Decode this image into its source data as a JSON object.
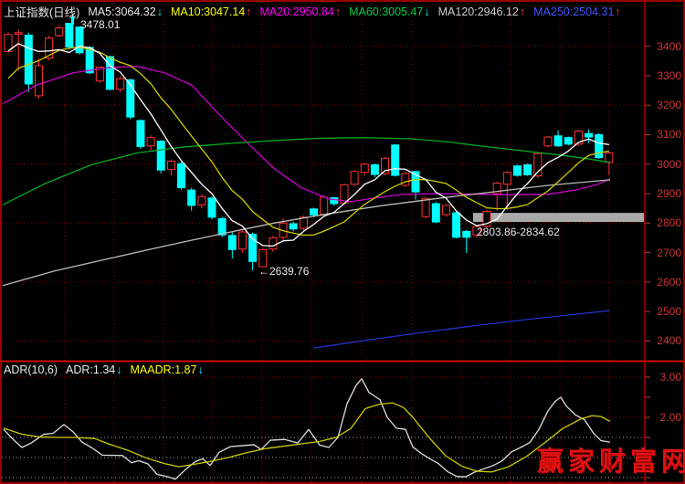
{
  "header": {
    "title": "上证指数(日线)",
    "ma_legend": [
      {
        "label": "MA5:3064.32",
        "arrow": "↓",
        "color": "#e8e8e8",
        "arrow_color": "#00ffff"
      },
      {
        "label": "MA10:3047.14",
        "arrow": "↑",
        "color": "#ffff00",
        "arrow_color": "#ff3333"
      },
      {
        "label": "MA20:2950.84",
        "arrow": "↑",
        "color": "#ff00ff",
        "arrow_color": "#ff3333"
      },
      {
        "label": "MA60:3005.47",
        "arrow": "↓",
        "color": "#00cc44",
        "arrow_color": "#00ffff"
      },
      {
        "label": "MA120:2946.12",
        "arrow": "↑",
        "color": "#cccccc",
        "arrow_color": "#ff3333"
      },
      {
        "label": "MA250:2504.31",
        "arrow": "↑",
        "color": "#4455ff",
        "arrow_color": "#ff3333"
      }
    ]
  },
  "adr_header": {
    "title": "ADR(10,6)",
    "items": [
      {
        "label": "ADR:1.34",
        "arrow": "↓",
        "color": "#e8e8e8",
        "arrow_color": "#00ffff"
      },
      {
        "label": "MAADR:1.87",
        "arrow": "↓",
        "color": "#ffff00",
        "arrow_color": "#00ffff"
      }
    ]
  },
  "watermark": "赢家财富网",
  "colors": {
    "bg": "#000000",
    "border": "#9a0000",
    "grid": "#8b0000",
    "grid_gray": "#aaaaaa",
    "axis_line": "#b00000",
    "separator": "#cc0000",
    "axis_text": "#cd3434",
    "up": "#ff3232",
    "down": "#00ffff",
    "band": "#aaaaaa",
    "ma5": "#ffffff",
    "ma10": "#cccc00",
    "ma20": "#cc00cc",
    "ma60": "#00aa22",
    "ma120": "#bbbbbb",
    "ma250": "#2233cc",
    "adr_line": "#dddddd",
    "maadr_line": "#cccc00"
  },
  "chart_data": [
    {
      "type": "candlestick",
      "title": "上证指数(日线)",
      "y_axis": {
        "ticks": [
          3400,
          3300,
          3200,
          3100,
          3000,
          2900,
          2800,
          2700,
          2600,
          2500,
          2400
        ],
        "grid_levels": [
          3400,
          3200,
          3000,
          2800,
          2600,
          2400
        ],
        "range": [
          2330,
          3495
        ]
      },
      "x_gridlines": [
        71,
        125,
        179,
        233,
        287,
        341,
        396,
        451,
        505,
        559,
        613,
        667
      ],
      "pre_closes": [
        3050,
        3100,
        3150,
        3200,
        3250,
        3290,
        3320,
        3350,
        3390,
        3420
      ],
      "candles": [
        [
          3382,
          3448,
          3376,
          3440
        ],
        [
          3442,
          3458,
          3318,
          3446
        ],
        [
          3438,
          3446,
          3245,
          3272
        ],
        [
          3232,
          3358,
          3222,
          3334
        ],
        [
          3360,
          3436,
          3352,
          3428
        ],
        [
          3436,
          3470,
          3430,
          3462
        ],
        [
          3478,
          3478,
          3388,
          3398
        ],
        [
          3465,
          3468,
          3372,
          3378
        ],
        [
          3396,
          3400,
          3305,
          3310
        ],
        [
          3282,
          3332,
          3276,
          3329
        ],
        [
          3365,
          3368,
          3250,
          3254
        ],
        [
          3254,
          3298,
          3244,
          3290
        ],
        [
          3286,
          3290,
          3152,
          3160
        ],
        [
          3148,
          3152,
          3052,
          3060
        ],
        [
          3062,
          3098,
          3048,
          3090
        ],
        [
          3078,
          3082,
          2968,
          2980
        ],
        [
          2982,
          3016,
          2962,
          3010
        ],
        [
          3002,
          3008,
          2912,
          2920
        ],
        [
          2912,
          2920,
          2842,
          2860
        ],
        [
          2862,
          2898,
          2850,
          2890
        ],
        [
          2885,
          2890,
          2812,
          2820
        ],
        [
          2815,
          2822,
          2752,
          2760
        ],
        [
          2758,
          2772,
          2680,
          2710
        ],
        [
          2712,
          2775,
          2700,
          2770
        ],
        [
          2762,
          2768,
          2639.76,
          2670
        ],
        [
          2652,
          2715,
          2650,
          2710
        ],
        [
          2712,
          2756,
          2702,
          2750
        ],
        [
          2752,
          2818,
          2742,
          2800
        ],
        [
          2798,
          2805,
          2772,
          2780
        ],
        [
          2782,
          2826,
          2776,
          2820
        ],
        [
          2848,
          2852,
          2820,
          2828
        ],
        [
          2830,
          2895,
          2824,
          2888
        ],
        [
          2886,
          2890,
          2858,
          2866
        ],
        [
          2868,
          2934,
          2862,
          2930
        ],
        [
          2932,
          2980,
          2926,
          2975
        ],
        [
          2972,
          3005,
          2962,
          3000
        ],
        [
          2998,
          3002,
          2956,
          2965
        ],
        [
          2968,
          3025,
          2962,
          3020
        ],
        [
          3065,
          3068,
          2958,
          2962
        ],
        [
          2928,
          2972,
          2922,
          2968
        ],
        [
          2975,
          2978,
          2880,
          2906
        ],
        [
          2822,
          2888,
          2816,
          2884
        ],
        [
          2866,
          2872,
          2800,
          2804
        ],
        [
          2829,
          2864,
          2822,
          2860
        ],
        [
          2835,
          2840,
          2748,
          2752
        ],
        [
          2772,
          2776,
          2698,
          2752
        ],
        [
          2760,
          2792,
          2750,
          2788
        ],
        [
          2790,
          2845,
          2784,
          2840
        ],
        [
          2900,
          2940,
          2842,
          2936
        ],
        [
          2932,
          2976,
          2845,
          2972
        ],
        [
          2994,
          2998,
          2958,
          2962
        ],
        [
          2998,
          3002,
          2960,
          2964
        ],
        [
          2960,
          3040,
          2954,
          3036
        ],
        [
          3062,
          3095,
          3056,
          3092
        ],
        [
          3096,
          3114,
          3058,
          3062
        ],
        [
          3090,
          3094,
          3064,
          3068
        ],
        [
          3068,
          3116,
          3062,
          3112
        ],
        [
          3104,
          3118,
          3072,
          3092
        ],
        [
          3100,
          3106,
          3018,
          3022
        ],
        [
          3006,
          3042,
          2962,
          3038
        ]
      ],
      "ma_overlays": [
        {
          "name": "MA20",
          "color_key": "ma20",
          "points": [
            [
              3,
              3205
            ],
            [
              40,
              3268
            ],
            [
              80,
              3310
            ],
            [
              120,
              3328
            ],
            [
              150,
              3332
            ],
            [
              180,
              3310
            ],
            [
              210,
              3268
            ],
            [
              240,
              3168
            ],
            [
              270,
              3075
            ],
            [
              300,
              2985
            ],
            [
              330,
              2920
            ],
            [
              360,
              2882
            ],
            [
              385,
              2873
            ],
            [
              410,
              2885
            ],
            [
              440,
              2897
            ],
            [
              480,
              2900
            ],
            [
              520,
              2898
            ],
            [
              560,
              2896
            ],
            [
              600,
              2898
            ],
            [
              630,
              2912
            ],
            [
              655,
              2932
            ],
            [
              668,
              2950
            ]
          ]
        },
        {
          "name": "MA60",
          "color_key": "ma60",
          "points": [
            [
              3,
              2862
            ],
            [
              50,
              2935
            ],
            [
              100,
              2998
            ],
            [
              150,
              3038
            ],
            [
              200,
              3058
            ],
            [
              250,
              3070
            ],
            [
              300,
              3080
            ],
            [
              350,
              3088
            ],
            [
              400,
              3090
            ],
            [
              450,
              3086
            ],
            [
              490,
              3076
            ],
            [
              530,
              3060
            ],
            [
              570,
              3046
            ],
            [
              610,
              3032
            ],
            [
              640,
              3020
            ],
            [
              668,
              3006
            ]
          ]
        },
        {
          "name": "MA120",
          "color_key": "ma120",
          "points": [
            [
              3,
              2588
            ],
            [
              60,
              2638
            ],
            [
              120,
              2680
            ],
            [
              180,
              2722
            ],
            [
              240,
              2762
            ],
            [
              300,
              2800
            ],
            [
              360,
              2832
            ],
            [
              420,
              2860
            ],
            [
              480,
              2884
            ],
            [
              540,
              2906
            ],
            [
              600,
              2928
            ],
            [
              668,
              2947
            ]
          ]
        },
        {
          "name": "MA250",
          "color_key": "ma250",
          "points": [
            [
              343,
              2376
            ],
            [
              400,
              2402
            ],
            [
              460,
              2428
            ],
            [
              520,
              2452
            ],
            [
              580,
              2474
            ],
            [
              640,
              2494
            ],
            [
              668,
              2503
            ]
          ]
        }
      ],
      "annotations": {
        "high_label": "3478.01",
        "low_label": "←2639.76",
        "gap_label": "2803.86-2834.62",
        "gap_band": {
          "price_from": 2803.86,
          "price_to": 2834.62,
          "x_start": 518
        }
      }
    },
    {
      "type": "line",
      "title": "ADR(10,6)",
      "y_axis": {
        "labels": [
          "3.00",
          "2.00"
        ],
        "label_values": [
          3.0,
          2.0
        ],
        "ticks": [
          3.0,
          2.5,
          2.0,
          1.5,
          1.0,
          0.5
        ],
        "grid_red": [
          3.0,
          2.0
        ],
        "grid_gray": [
          1.5,
          1.0,
          0.5
        ]
      },
      "series": [
        {
          "name": "ADR",
          "color_key": "adr_line",
          "points": [
            [
              4,
              1.7
            ],
            [
              14,
              1.46
            ],
            [
              24,
              1.25
            ],
            [
              34,
              1.36
            ],
            [
              48,
              1.58
            ],
            [
              58,
              1.6
            ],
            [
              70,
              1.82
            ],
            [
              80,
              1.64
            ],
            [
              90,
              1.38
            ],
            [
              100,
              1.25
            ],
            [
              112,
              1.06
            ],
            [
              134,
              1.05
            ],
            [
              144,
              0.87
            ],
            [
              152,
              0.92
            ],
            [
              162,
              0.84
            ],
            [
              172,
              0.58
            ],
            [
              184,
              0.52
            ],
            [
              192,
              0.46
            ],
            [
              204,
              0.72
            ],
            [
              214,
              0.9
            ],
            [
              222,
              0.97
            ],
            [
              230,
              0.8
            ],
            [
              240,
              1.13
            ],
            [
              252,
              1.27
            ],
            [
              268,
              1.3
            ],
            [
              278,
              1.32
            ],
            [
              286,
              1.2
            ],
            [
              296,
              1.43
            ],
            [
              312,
              1.45
            ],
            [
              326,
              1.36
            ],
            [
              338,
              1.7
            ],
            [
              350,
              1.31
            ],
            [
              360,
              1.25
            ],
            [
              370,
              1.5
            ],
            [
              380,
              2.34
            ],
            [
              390,
              2.8
            ],
            [
              396,
              2.96
            ],
            [
              404,
              2.62
            ],
            [
              416,
              2.44
            ],
            [
              424,
              2.0
            ],
            [
              434,
              1.73
            ],
            [
              444,
              1.7
            ],
            [
              452,
              1.26
            ],
            [
              462,
              1.09
            ],
            [
              472,
              0.95
            ],
            [
              480,
              0.85
            ],
            [
              490,
              0.65
            ],
            [
              500,
              0.53
            ],
            [
              510,
              0.52
            ],
            [
              520,
              0.64
            ],
            [
              530,
              0.72
            ],
            [
              540,
              0.8
            ],
            [
              550,
              0.92
            ],
            [
              560,
              1.14
            ],
            [
              570,
              1.25
            ],
            [
              580,
              1.37
            ],
            [
              590,
              1.7
            ],
            [
              600,
              2.16
            ],
            [
              608,
              2.4
            ],
            [
              614,
              2.5
            ],
            [
              620,
              2.28
            ],
            [
              630,
              2.06
            ],
            [
              640,
              1.94
            ],
            [
              650,
              1.6
            ],
            [
              658,
              1.42
            ],
            [
              668,
              1.38
            ]
          ]
        },
        {
          "name": "MAADR",
          "color_key": "maadr_line",
          "points": [
            [
              4,
              1.73
            ],
            [
              24,
              1.58
            ],
            [
              44,
              1.51
            ],
            [
              64,
              1.5
            ],
            [
              84,
              1.5
            ],
            [
              104,
              1.47
            ],
            [
              120,
              1.33
            ],
            [
              140,
              1.18
            ],
            [
              160,
              0.99
            ],
            [
              180,
              0.85
            ],
            [
              196,
              0.77
            ],
            [
              212,
              0.83
            ],
            [
              230,
              0.9
            ],
            [
              250,
              1.0
            ],
            [
              270,
              1.12
            ],
            [
              290,
              1.22
            ],
            [
              310,
              1.28
            ],
            [
              330,
              1.34
            ],
            [
              350,
              1.4
            ],
            [
              368,
              1.5
            ],
            [
              384,
              1.72
            ],
            [
              400,
              2.22
            ],
            [
              416,
              2.33
            ],
            [
              430,
              2.36
            ],
            [
              442,
              2.24
            ],
            [
              452,
              2.0
            ],
            [
              470,
              1.49
            ],
            [
              488,
              1.04
            ],
            [
              506,
              0.78
            ],
            [
              522,
              0.66
            ],
            [
              538,
              0.64
            ],
            [
              556,
              0.76
            ],
            [
              576,
              1.02
            ],
            [
              596,
              1.36
            ],
            [
              616,
              1.72
            ],
            [
              636,
              1.96
            ],
            [
              648,
              2.04
            ],
            [
              658,
              2.02
            ],
            [
              668,
              1.9
            ]
          ]
        }
      ]
    }
  ]
}
